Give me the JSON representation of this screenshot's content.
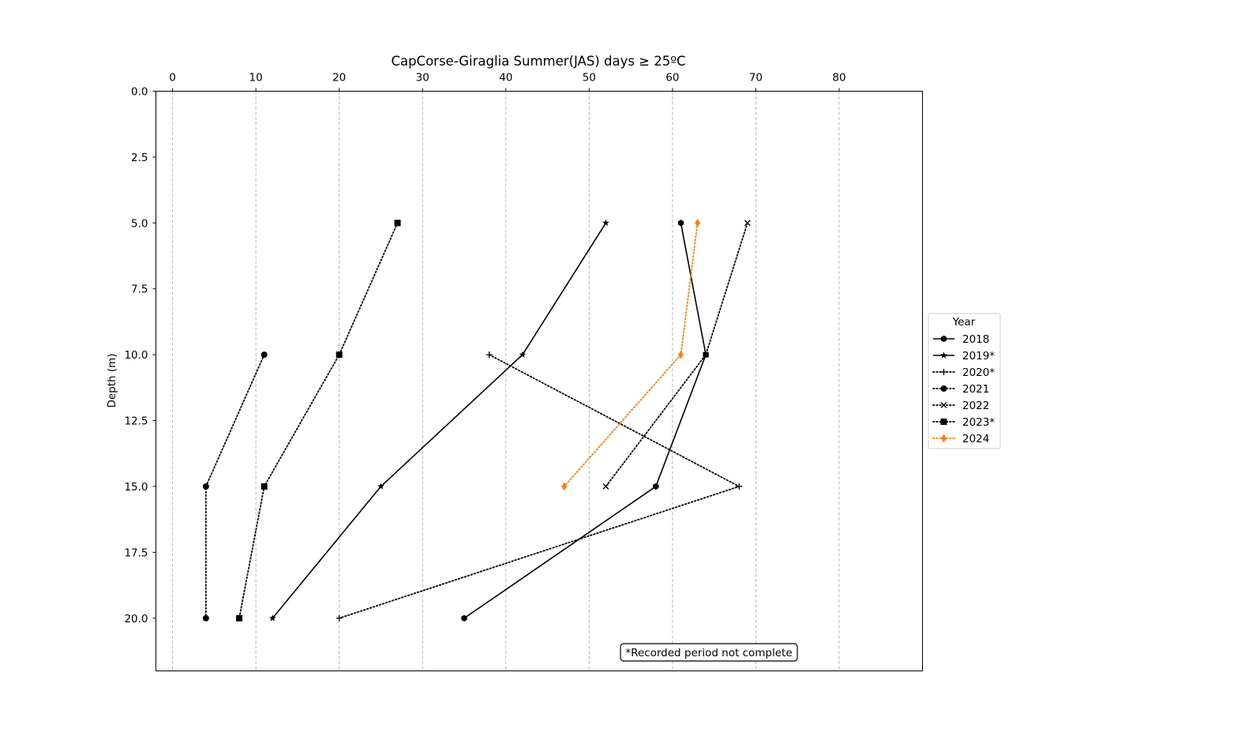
{
  "chart_data": {
    "type": "line",
    "title": "CapCorse-Giraglia Summer(JAS) days ≥ 25ºC",
    "xlabel": "",
    "ylabel": "Depth (m)",
    "xlim": [
      -2,
      90
    ],
    "ylim": [
      22,
      0
    ],
    "y_inverted": true,
    "x_axis_position": "top",
    "x_ticks": [
      0,
      10,
      20,
      30,
      40,
      50,
      60,
      70,
      80
    ],
    "y_ticks": [
      0.0,
      2.5,
      5.0,
      7.5,
      10.0,
      12.5,
      15.0,
      17.5,
      20.0
    ],
    "x_tick_labels": [
      "0",
      "10",
      "20",
      "30",
      "40",
      "50",
      "60",
      "70",
      "80"
    ],
    "y_tick_labels": [
      "0.0",
      "2.5",
      "5.0",
      "7.5",
      "10.0",
      "12.5",
      "15.0",
      "17.5",
      "20.0"
    ],
    "grid": "vertical dashed",
    "legend": {
      "title": "Year",
      "placement": "right"
    },
    "annotation": "*Recorded period not complete",
    "series": [
      {
        "name": "2018",
        "color": "#000000",
        "linestyle": "solid",
        "marker": "hexagon",
        "points": [
          {
            "x": 61,
            "y": 5
          },
          {
            "x": 64,
            "y": 10
          },
          {
            "x": 58,
            "y": 15
          },
          {
            "x": 35,
            "y": 20
          }
        ]
      },
      {
        "name": "2019*",
        "color": "#000000",
        "linestyle": "solid",
        "marker": "star",
        "points": [
          {
            "x": 52,
            "y": 5
          },
          {
            "x": 42,
            "y": 10
          },
          {
            "x": 25,
            "y": 15
          },
          {
            "x": 12,
            "y": 20
          }
        ]
      },
      {
        "name": "2020*",
        "color": "#000000",
        "linestyle": "dotted",
        "marker": "plus",
        "points": [
          {
            "x": 38,
            "y": 10
          },
          {
            "x": 68,
            "y": 15
          },
          {
            "x": 20,
            "y": 20
          }
        ]
      },
      {
        "name": "2021",
        "color": "#000000",
        "linestyle": "dotted",
        "marker": "circle",
        "points": [
          {
            "x": 11,
            "y": 10
          },
          {
            "x": 4,
            "y": 15
          },
          {
            "x": 4,
            "y": 20
          }
        ]
      },
      {
        "name": "2022",
        "color": "#000000",
        "linestyle": "dotted",
        "marker": "x",
        "points": [
          {
            "x": 69,
            "y": 5
          },
          {
            "x": 64,
            "y": 10
          },
          {
            "x": 52,
            "y": 15
          }
        ]
      },
      {
        "name": "2023*",
        "color": "#000000",
        "linestyle": "dotted",
        "marker": "square",
        "points": [
          {
            "x": 27,
            "y": 5
          },
          {
            "x": 20,
            "y": 10
          },
          {
            "x": 11,
            "y": 15
          },
          {
            "x": 8,
            "y": 20
          }
        ]
      },
      {
        "name": "2024",
        "color": "#ff7f0e",
        "linestyle": "dotted",
        "marker": "diamond",
        "points": [
          {
            "x": 63,
            "y": 5
          },
          {
            "x": 61,
            "y": 10
          },
          {
            "x": 47,
            "y": 15
          }
        ]
      }
    ]
  }
}
